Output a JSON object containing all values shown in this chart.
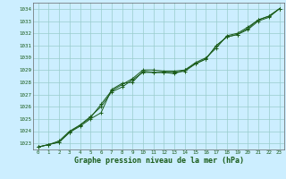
{
  "title": "Graphe pression niveau de la mer (hPa)",
  "bg_color": "#cceeff",
  "grid_color": "#99cccc",
  "line_color": "#1a5c1a",
  "xlim": [
    -0.5,
    23.5
  ],
  "ylim": [
    1022.5,
    1034.5
  ],
  "yticks": [
    1023,
    1024,
    1025,
    1026,
    1027,
    1028,
    1029,
    1030,
    1031,
    1032,
    1033,
    1034
  ],
  "xticks": [
    0,
    1,
    2,
    3,
    4,
    5,
    6,
    7,
    8,
    9,
    10,
    11,
    12,
    13,
    14,
    15,
    16,
    17,
    18,
    19,
    20,
    21,
    22,
    23
  ],
  "series1": [
    [
      0,
      1022.7
    ],
    [
      1,
      1022.9
    ],
    [
      2,
      1023.1
    ],
    [
      3,
      1023.9
    ],
    [
      4,
      1024.4
    ],
    [
      5,
      1025.0
    ],
    [
      6,
      1025.5
    ],
    [
      7,
      1027.4
    ],
    [
      8,
      1027.9
    ],
    [
      9,
      1028.0
    ],
    [
      10,
      1028.9
    ],
    [
      11,
      1028.8
    ],
    [
      12,
      1028.8
    ],
    [
      13,
      1028.8
    ],
    [
      14,
      1028.9
    ],
    [
      15,
      1029.5
    ],
    [
      16,
      1029.9
    ],
    [
      17,
      1031.0
    ],
    [
      18,
      1031.7
    ],
    [
      19,
      1031.9
    ],
    [
      20,
      1032.4
    ],
    [
      21,
      1033.1
    ],
    [
      22,
      1033.4
    ],
    [
      23,
      1034.0
    ]
  ],
  "series2": [
    [
      0,
      1022.7
    ],
    [
      1,
      1022.9
    ],
    [
      2,
      1023.1
    ],
    [
      3,
      1023.9
    ],
    [
      4,
      1024.5
    ],
    [
      5,
      1025.1
    ],
    [
      6,
      1026.2
    ],
    [
      7,
      1027.3
    ],
    [
      8,
      1027.8
    ],
    [
      9,
      1028.3
    ],
    [
      10,
      1029.0
    ],
    [
      11,
      1029.0
    ],
    [
      12,
      1028.9
    ],
    [
      13,
      1028.9
    ],
    [
      14,
      1029.0
    ],
    [
      15,
      1029.6
    ],
    [
      16,
      1030.0
    ],
    [
      17,
      1030.8
    ],
    [
      18,
      1031.8
    ],
    [
      19,
      1032.0
    ],
    [
      20,
      1032.5
    ],
    [
      21,
      1033.1
    ],
    [
      22,
      1033.4
    ],
    [
      23,
      1034.0
    ]
  ],
  "series3": [
    [
      0,
      1022.7
    ],
    [
      1,
      1022.9
    ],
    [
      2,
      1023.2
    ],
    [
      3,
      1024.0
    ],
    [
      4,
      1024.5
    ],
    [
      5,
      1025.2
    ],
    [
      6,
      1026.0
    ],
    [
      7,
      1027.2
    ],
    [
      8,
      1027.6
    ],
    [
      9,
      1028.2
    ],
    [
      10,
      1028.8
    ],
    [
      11,
      1028.8
    ],
    [
      12,
      1028.8
    ],
    [
      13,
      1028.7
    ],
    [
      14,
      1029.0
    ],
    [
      15,
      1029.5
    ],
    [
      16,
      1029.9
    ],
    [
      17,
      1031.0
    ],
    [
      18,
      1031.7
    ],
    [
      19,
      1031.9
    ],
    [
      20,
      1032.3
    ],
    [
      21,
      1033.0
    ],
    [
      22,
      1033.3
    ],
    [
      23,
      1034.0
    ]
  ]
}
